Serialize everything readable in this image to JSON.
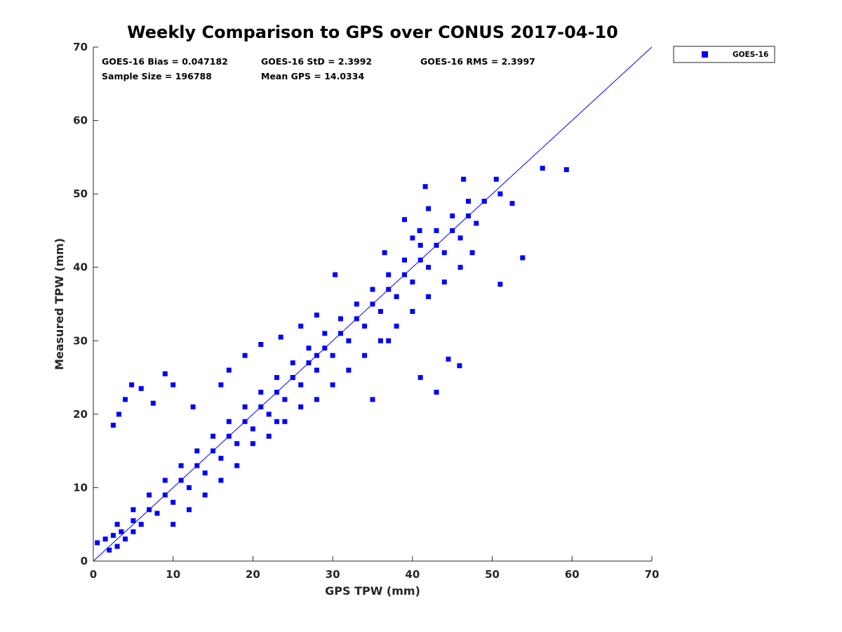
{
  "chart_data": {
    "type": "scatter",
    "title": "Weekly Comparison to GPS over CONUS 2017-04-10",
    "xlabel": "GPS TPW (mm)",
    "ylabel": "Measured TPW (mm)",
    "xlim": [
      0,
      70
    ],
    "ylim": [
      0,
      70
    ],
    "xticks": [
      "0",
      "10",
      "20",
      "30",
      "40",
      "50",
      "60",
      "70"
    ],
    "yticks": [
      "0",
      "10",
      "20",
      "30",
      "40",
      "50",
      "60",
      "70"
    ],
    "grid": false,
    "legend_position": "outside-top-right",
    "annotations": [
      "GOES-16 Bias = 0.047182",
      "GOES-16 StD = 2.3992",
      "GOES-16 RMS = 2.3997",
      "Sample Size = 196788",
      "Mean GPS = 14.0334"
    ],
    "reference_line": {
      "x": [
        0,
        70
      ],
      "y": [
        0,
        70
      ]
    },
    "series": [
      {
        "name": "GOES-16",
        "color": "#0000ff",
        "marker": "square",
        "sample_size": 196788,
        "x": [
          0.5,
          1.5,
          2.5,
          3.5,
          5,
          7,
          9,
          11,
          13,
          15,
          17,
          19,
          21,
          23,
          25,
          27,
          29,
          31,
          33,
          35,
          37,
          39,
          41,
          43,
          45,
          47,
          49,
          51,
          2,
          3,
          4,
          5,
          6,
          8,
          10,
          12,
          14,
          16,
          18,
          20,
          22,
          24,
          26,
          28,
          30,
          32,
          34,
          36,
          38,
          40,
          42,
          44,
          46,
          48,
          3,
          5,
          7,
          9,
          11,
          13,
          15,
          17,
          19,
          21,
          23,
          25,
          27,
          29,
          31,
          33,
          35,
          37,
          39,
          41,
          43,
          45,
          2.5,
          3.2,
          4,
          4.8,
          6,
          7.5,
          9,
          10,
          12.5,
          16,
          17,
          19,
          21,
          23.5,
          26,
          28,
          20,
          22,
          24,
          26,
          28,
          30,
          32,
          34,
          36,
          38,
          40,
          42,
          44,
          46,
          12,
          14,
          16,
          18,
          10,
          56.3,
          59.3,
          53.8,
          52.5,
          51,
          47.5,
          45.9,
          44.5,
          42,
          39,
          37,
          35,
          41,
          43,
          49,
          50.5,
          47,
          46.4,
          41.6,
          40.9,
          40,
          36.5,
          30.3,
          28,
          25,
          23
        ],
        "y": [
          2.5,
          3,
          3.5,
          4,
          5.5,
          7,
          9,
          11,
          13,
          15,
          17,
          19,
          21,
          23,
          25,
          27,
          29,
          31,
          33,
          35,
          37,
          39,
          41,
          43,
          45,
          47,
          49,
          50,
          1.5,
          2,
          3,
          4,
          5,
          6.5,
          8,
          10,
          12,
          14,
          16,
          18,
          20,
          22,
          24,
          26,
          28,
          30,
          32,
          34,
          36,
          38,
          40,
          42,
          44,
          46,
          5,
          7,
          9,
          11,
          13,
          15,
          17,
          19,
          21,
          23,
          25,
          27,
          29,
          31,
          33,
          35,
          37,
          39,
          41,
          43,
          45,
          47,
          18.5,
          20,
          22,
          24,
          23.5,
          21.5,
          25.5,
          24,
          21,
          24,
          26,
          28,
          29.5,
          30.5,
          32,
          33.5,
          16,
          17,
          19,
          21,
          22,
          24,
          26,
          28,
          30,
          32,
          34,
          36,
          38,
          40,
          7,
          9,
          11,
          13,
          5,
          53.5,
          53.3,
          41.3,
          48.7,
          37.7,
          42,
          26.6,
          27.5,
          48,
          46.5,
          30,
          22,
          25,
          23,
          49,
          52,
          49,
          52,
          51,
          45,
          44,
          42,
          39,
          28,
          25,
          19
        ]
      }
    ]
  }
}
